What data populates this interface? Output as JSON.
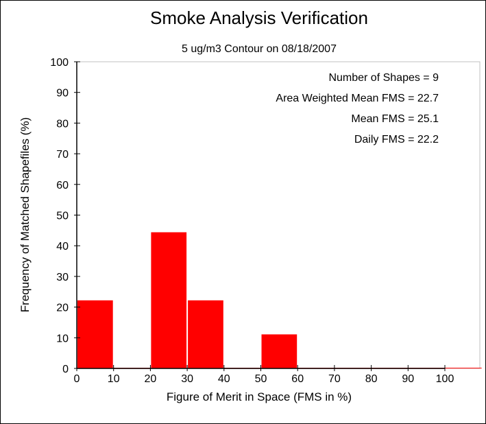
{
  "chart_data": {
    "type": "bar",
    "title": "Smoke Analysis Verification",
    "subtitle": "5 ug/m3 Contour on 08/18/2007",
    "xlabel": "Figure of Merit in Space (FMS in %)",
    "ylabel": "Frequency of Matched Shapefiles (%)",
    "xlim": [
      0,
      110
    ],
    "ylim": [
      0,
      100
    ],
    "x_ticks": [
      0,
      10,
      20,
      30,
      40,
      50,
      60,
      70,
      80,
      90,
      100
    ],
    "y_ticks": [
      0,
      10,
      20,
      30,
      40,
      50,
      60,
      70,
      80,
      90,
      100
    ],
    "bins": [
      {
        "start": 0,
        "end": 10,
        "value": 22.2
      },
      {
        "start": 10,
        "end": 20,
        "value": 0
      },
      {
        "start": 20,
        "end": 30,
        "value": 44.4
      },
      {
        "start": 30,
        "end": 40,
        "value": 22.2
      },
      {
        "start": 40,
        "end": 50,
        "value": 0
      },
      {
        "start": 50,
        "end": 60,
        "value": 11.1
      },
      {
        "start": 60,
        "end": 70,
        "value": 0
      },
      {
        "start": 70,
        "end": 80,
        "value": 0
      },
      {
        "start": 80,
        "end": 90,
        "value": 0
      },
      {
        "start": 90,
        "end": 100,
        "value": 0
      },
      {
        "start": 100,
        "end": 110,
        "value": 0
      }
    ],
    "annotations": [
      "Number of Shapes = 9",
      "Area Weighted Mean FMS = 22.7",
      "Mean FMS = 25.1",
      "Daily FMS = 22.2"
    ],
    "bar_color": "#ff0000",
    "grid": false
  }
}
